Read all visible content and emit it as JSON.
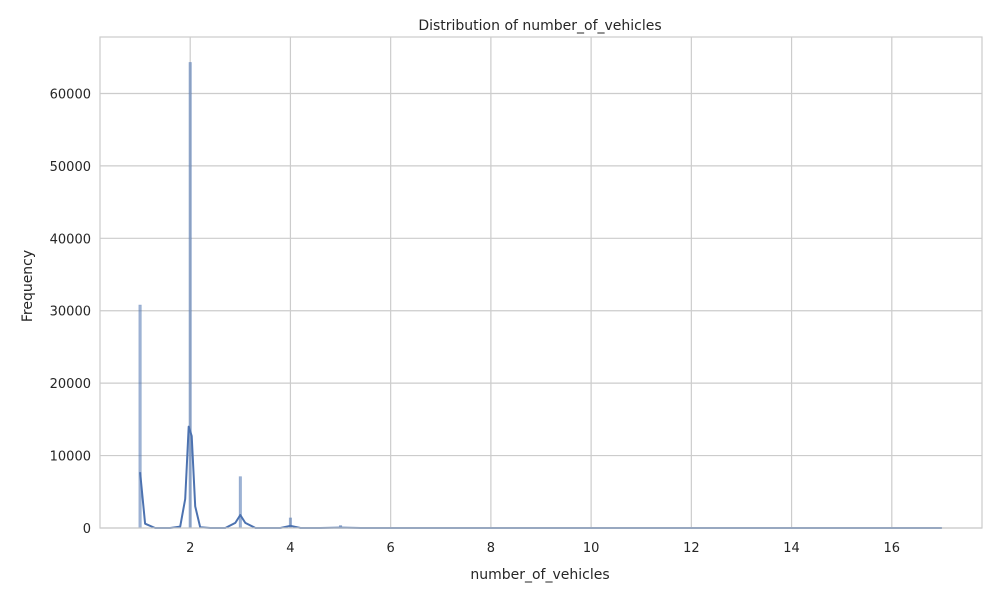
{
  "chart_data": {
    "type": "bar",
    "title": "Distribution of number_of_vehicles",
    "xlabel": "number_of_vehicles",
    "ylabel": "Frequency",
    "xlim": [
      0.2,
      17.8
    ],
    "ylim": [
      0,
      67800
    ],
    "x_ticks": [
      2,
      4,
      6,
      8,
      10,
      12,
      14,
      16
    ],
    "x_tick_labels": [
      "2",
      "4",
      "6",
      "8",
      "10",
      "12",
      "14",
      "16"
    ],
    "y_ticks": [
      0,
      10000,
      20000,
      30000,
      40000,
      50000,
      60000
    ],
    "y_tick_labels": [
      "0",
      "10000",
      "20000",
      "30000",
      "40000",
      "50000",
      "60000"
    ],
    "grid": true,
    "colors": {
      "bars": "#4c72b0",
      "kde": "#4c72b0",
      "grid": "#cccccc",
      "frame": "#cccccc"
    },
    "series": [
      {
        "kind": "histogram",
        "x": [
          1,
          2,
          3,
          4,
          5,
          6,
          7,
          8,
          9,
          10,
          11,
          12,
          13,
          14,
          15,
          16,
          17
        ],
        "values": [
          30800,
          64300,
          7100,
          1400,
          350,
          100,
          40,
          20,
          10,
          5,
          3,
          2,
          1,
          1,
          1,
          1,
          1
        ]
      },
      {
        "kind": "kde",
        "x": [
          1.0,
          1.1,
          1.3,
          1.6,
          1.8,
          1.9,
          1.97,
          2.03,
          2.1,
          2.2,
          2.4,
          2.7,
          2.9,
          3.0,
          3.1,
          3.3,
          3.8,
          4.0,
          4.2,
          4.6,
          5.0,
          5.4,
          6,
          8,
          10,
          12,
          14,
          16,
          17
        ],
        "values": [
          7700,
          600,
          0,
          0,
          200,
          4000,
          14000,
          12700,
          3000,
          100,
          0,
          0,
          700,
          1800,
          700,
          0,
          0,
          300,
          0,
          0,
          60,
          0,
          0,
          0,
          0,
          0,
          0,
          0,
          0
        ]
      }
    ]
  }
}
